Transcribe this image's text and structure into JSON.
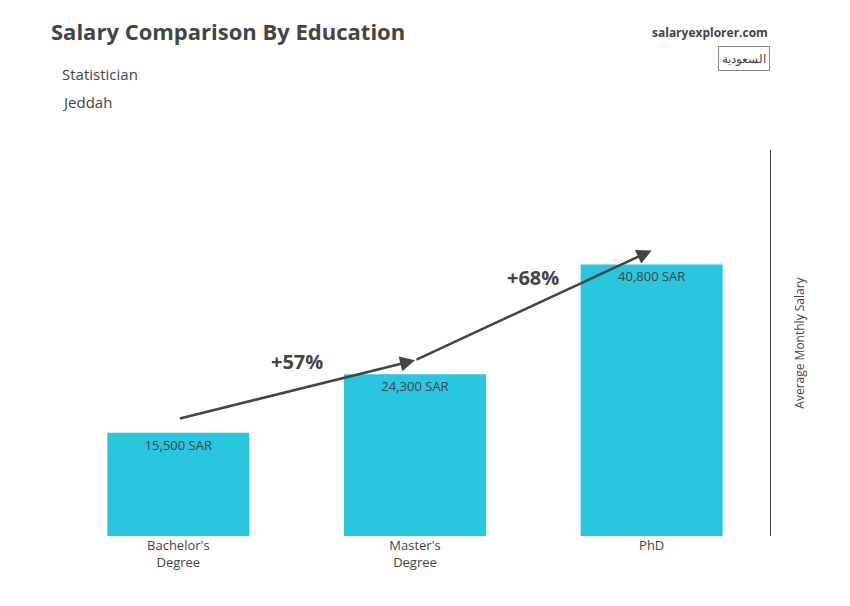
{
  "chart_data": {
    "type": "bar",
    "title": "Salary Comparison By Education",
    "subtitle": [
      "Statistician",
      "Jeddah"
    ],
    "source": "salaryexplorer.com",
    "flag_text": "السعودية",
    "ylabel": "Average Monthly Salary",
    "categories": [
      "Bachelor's\nDegree",
      "Master's\nDegree",
      "PhD"
    ],
    "values": [
      15500,
      24300,
      40800
    ],
    "value_labels": [
      "15,500 SAR",
      "24,300 SAR",
      "40,800 SAR"
    ],
    "data_labels": true,
    "annotations": [
      "+57%",
      "+68%"
    ],
    "color": "#29C6E0",
    "ylim": [
      0,
      58000
    ],
    "tick_labels": "x",
    "grid": false
  }
}
